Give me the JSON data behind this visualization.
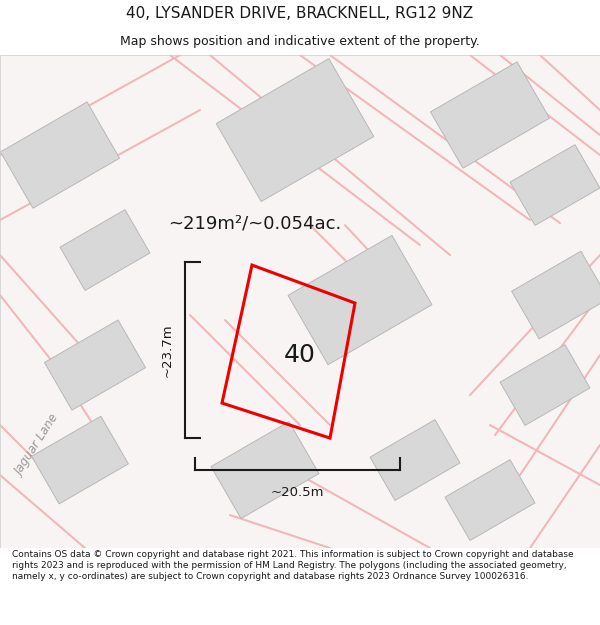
{
  "title_line1": "40, LYSANDER DRIVE, BRACKNELL, RG12 9NZ",
  "title_line2": "Map shows position and indicative extent of the property.",
  "area_label": "~219m²/~0.054ac.",
  "number_label": "40",
  "width_label": "~20.5m",
  "height_label": "~23.7m",
  "footer_text": "Contains OS data © Crown copyright and database right 2021. This information is subject to Crown copyright and database rights 2023 and is reproduced with the permission of HM Land Registry. The polygons (including the associated geometry, namely x, y co-ordinates) are subject to Crown copyright and database rights 2023 Ordnance Survey 100026316.",
  "map_bg": "#ffffff",
  "road_color": "#f0b8b8",
  "road_outline_color": "#e8a8a8",
  "building_fill": "#d8d8d8",
  "building_edge": "#b8b8b8",
  "property_color": "#ee0000",
  "dim_line_color": "#1a1a1a",
  "text_color": "#1a1a1a",
  "jaguar_lane_color": "#999999",
  "title_fontsize": 11,
  "subtitle_fontsize": 9,
  "area_fontsize": 13,
  "number_fontsize": 18,
  "dim_fontsize": 9.5,
  "jaguar_fontsize": 8.5,
  "footer_fontsize": 6.5
}
